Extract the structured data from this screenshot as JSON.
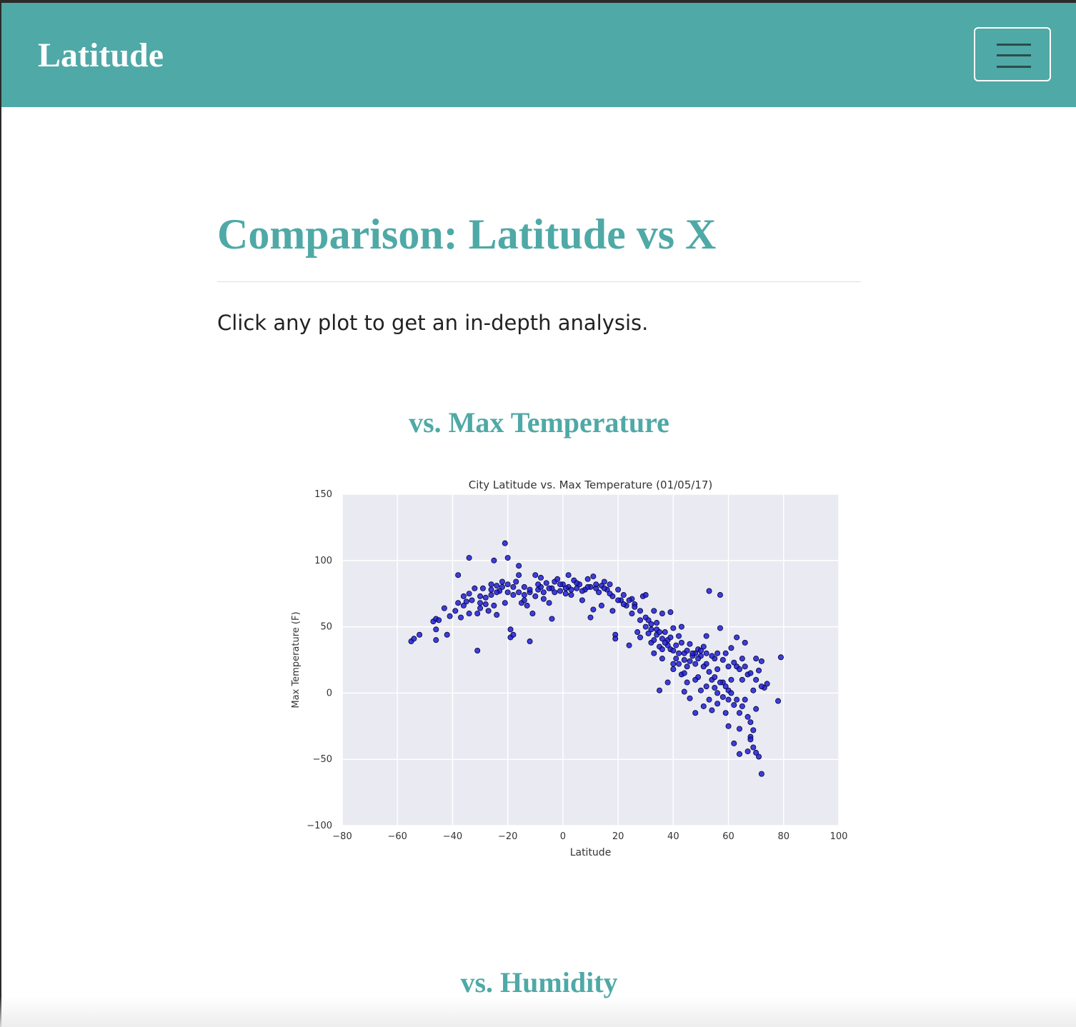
{
  "navbar": {
    "brand": "Latitude",
    "menu_toggle_icon": "hamburger-menu-icon",
    "bg_color": "#4fa9a6"
  },
  "main": {
    "title": "Comparison: Latitude vs X",
    "intro": "Click any plot to get an in-depth analysis.",
    "sections": [
      {
        "heading": "vs. Max Temperature"
      },
      {
        "heading": "vs. Humidity"
      }
    ]
  },
  "chart_data": {
    "type": "scatter",
    "title": "City Latitude vs. Max Temperature (01/05/17)",
    "xlabel": "Latitude",
    "ylabel": "Max Temperature (F)",
    "xlim": [
      -80,
      100
    ],
    "ylim": [
      -100,
      150
    ],
    "xticks": [
      -80,
      -60,
      -40,
      -20,
      0,
      20,
      40,
      60,
      80,
      100
    ],
    "xtick_labels": [
      "−80",
      "−60",
      "−40",
      "−20",
      "0",
      "20",
      "40",
      "60",
      "80",
      "100"
    ],
    "yticks": [
      -100,
      -50,
      0,
      50,
      100,
      150
    ],
    "ytick_labels": [
      "−100",
      "−50",
      "0",
      "50",
      "100",
      "150"
    ],
    "grid": true,
    "background": "#eaeaf2",
    "marker_color": "#1f1fd8",
    "points": [
      [
        -55,
        39
      ],
      [
        -54,
        41
      ],
      [
        -52,
        44
      ],
      [
        -47,
        54
      ],
      [
        -46,
        56
      ],
      [
        -46,
        48
      ],
      [
        -46,
        40
      ],
      [
        -45,
        55
      ],
      [
        -43,
        64
      ],
      [
        -42,
        44
      ],
      [
        -41,
        58
      ],
      [
        -39,
        62
      ],
      [
        -38,
        68
      ],
      [
        -38,
        89
      ],
      [
        -37,
        57
      ],
      [
        -36,
        66
      ],
      [
        -36,
        73
      ],
      [
        -35,
        69
      ],
      [
        -34,
        60
      ],
      [
        -34,
        102
      ],
      [
        -34,
        75
      ],
      [
        -33,
        70
      ],
      [
        -32,
        79
      ],
      [
        -31,
        60
      ],
      [
        -31,
        32
      ],
      [
        -30,
        64
      ],
      [
        -30,
        73
      ],
      [
        -29,
        79
      ],
      [
        -28,
        67
      ],
      [
        -27,
        62
      ],
      [
        -26,
        82
      ],
      [
        -26,
        74
      ],
      [
        -25,
        66
      ],
      [
        -25,
        100
      ],
      [
        -24,
        59
      ],
      [
        -24,
        81
      ],
      [
        -23,
        77
      ],
      [
        -22,
        84
      ],
      [
        -21,
        68
      ],
      [
        -21,
        113
      ],
      [
        -20,
        102
      ],
      [
        -20,
        76
      ],
      [
        -19,
        48
      ],
      [
        -19,
        42
      ],
      [
        -18,
        74
      ],
      [
        -18,
        44
      ],
      [
        -17,
        84
      ],
      [
        -16,
        89
      ],
      [
        -16,
        96
      ],
      [
        -15,
        68
      ],
      [
        -14,
        70
      ],
      [
        -14,
        80
      ],
      [
        -13,
        66
      ],
      [
        -12,
        39
      ],
      [
        -12,
        76
      ],
      [
        -11,
        60
      ],
      [
        -10,
        73
      ],
      [
        -10,
        89
      ],
      [
        -9,
        78
      ],
      [
        -8,
        80
      ],
      [
        -8,
        87
      ],
      [
        -7,
        71
      ],
      [
        -6,
        83
      ],
      [
        -5,
        68
      ],
      [
        -4,
        79
      ],
      [
        -4,
        56
      ],
      [
        -3,
        84
      ],
      [
        -2,
        86
      ],
      [
        -1,
        77
      ],
      [
        0,
        82
      ],
      [
        1,
        75
      ],
      [
        2,
        80
      ],
      [
        2,
        89
      ],
      [
        3,
        78
      ],
      [
        4,
        85
      ],
      [
        5,
        79
      ],
      [
        6,
        82
      ],
      [
        7,
        70
      ],
      [
        8,
        78
      ],
      [
        9,
        86
      ],
      [
        10,
        57
      ],
      [
        10,
        80
      ],
      [
        11,
        88
      ],
      [
        11,
        63
      ],
      [
        12,
        79
      ],
      [
        13,
        76
      ],
      [
        14,
        66
      ],
      [
        14,
        81
      ],
      [
        15,
        84
      ],
      [
        16,
        78
      ],
      [
        17,
        82
      ],
      [
        18,
        73
      ],
      [
        18,
        62
      ],
      [
        19,
        44
      ],
      [
        19,
        41
      ],
      [
        20,
        78
      ],
      [
        21,
        70
      ],
      [
        22,
        74
      ],
      [
        23,
        66
      ],
      [
        24,
        36
      ],
      [
        25,
        71
      ],
      [
        25,
        60
      ],
      [
        26,
        67
      ],
      [
        27,
        46
      ],
      [
        28,
        62
      ],
      [
        28,
        42
      ],
      [
        29,
        73
      ],
      [
        30,
        74
      ],
      [
        30,
        57
      ],
      [
        31,
        55
      ],
      [
        32,
        38
      ],
      [
        32,
        48
      ],
      [
        33,
        62
      ],
      [
        33,
        30
      ],
      [
        34,
        44
      ],
      [
        34,
        53
      ],
      [
        35,
        35
      ],
      [
        35,
        2
      ],
      [
        36,
        60
      ],
      [
        36,
        26
      ],
      [
        37,
        46
      ],
      [
        38,
        40
      ],
      [
        38,
        8
      ],
      [
        39,
        61
      ],
      [
        39,
        33
      ],
      [
        40,
        49
      ],
      [
        40,
        18
      ],
      [
        41,
        26
      ],
      [
        42,
        43
      ],
      [
        42,
        22
      ],
      [
        43,
        50
      ],
      [
        43,
        14
      ],
      [
        44,
        30
      ],
      [
        44,
        1
      ],
      [
        45,
        20
      ],
      [
        45,
        8
      ],
      [
        46,
        37
      ],
      [
        46,
        -4
      ],
      [
        47,
        28
      ],
      [
        48,
        22
      ],
      [
        48,
        -15
      ],
      [
        49,
        33
      ],
      [
        49,
        12
      ],
      [
        50,
        28
      ],
      [
        50,
        2
      ],
      [
        51,
        -10
      ],
      [
        51,
        35
      ],
      [
        52,
        22
      ],
      [
        52,
        43
      ],
      [
        53,
        -5
      ],
      [
        53,
        77
      ],
      [
        54,
        10
      ],
      [
        54,
        -13
      ],
      [
        55,
        26
      ],
      [
        55,
        4
      ],
      [
        56,
        -8
      ],
      [
        56,
        18
      ],
      [
        57,
        49
      ],
      [
        57,
        74
      ],
      [
        58,
        8
      ],
      [
        58,
        -3
      ],
      [
        59,
        30
      ],
      [
        59,
        -15
      ],
      [
        60,
        2
      ],
      [
        60,
        -25
      ],
      [
        61,
        34
      ],
      [
        61,
        10
      ],
      [
        62,
        -38
      ],
      [
        62,
        -9
      ],
      [
        63,
        42
      ],
      [
        63,
        20
      ],
      [
        64,
        -27
      ],
      [
        64,
        -46
      ],
      [
        65,
        10
      ],
      [
        65,
        26
      ],
      [
        66,
        -5
      ],
      [
        66,
        38
      ],
      [
        67,
        -44
      ],
      [
        67,
        14
      ],
      [
        68,
        -33
      ],
      [
        68,
        -22
      ],
      [
        69,
        2
      ],
      [
        69,
        -41
      ],
      [
        70,
        26
      ],
      [
        70,
        -12
      ],
      [
        71,
        17
      ],
      [
        71,
        -48
      ],
      [
        72,
        24
      ],
      [
        72,
        -61
      ],
      [
        73,
        4
      ],
      [
        74,
        7
      ],
      [
        78,
        -6
      ],
      [
        79,
        27
      ],
      [
        -9,
        82
      ],
      [
        -7,
        76
      ],
      [
        -5,
        79
      ],
      [
        -3,
        76
      ],
      [
        -1,
        82
      ],
      [
        1,
        79
      ],
      [
        3,
        74
      ],
      [
        5,
        83
      ],
      [
        7,
        77
      ],
      [
        9,
        80
      ],
      [
        12,
        82
      ],
      [
        15,
        79
      ],
      [
        17,
        75
      ],
      [
        20,
        70
      ],
      [
        22,
        67
      ],
      [
        24,
        70
      ],
      [
        26,
        65
      ],
      [
        28,
        55
      ],
      [
        30,
        50
      ],
      [
        32,
        52
      ],
      [
        34,
        48
      ],
      [
        36,
        41
      ],
      [
        38,
        36
      ],
      [
        40,
        32
      ],
      [
        42,
        30
      ],
      [
        44,
        25
      ],
      [
        46,
        24
      ],
      [
        48,
        30
      ],
      [
        50,
        32
      ],
      [
        52,
        30
      ],
      [
        54,
        28
      ],
      [
        56,
        30
      ],
      [
        58,
        25
      ],
      [
        60,
        20
      ],
      [
        62,
        23
      ],
      [
        64,
        18
      ],
      [
        66,
        20
      ],
      [
        68,
        15
      ],
      [
        70,
        10
      ],
      [
        72,
        5
      ],
      [
        -30,
        68
      ],
      [
        -28,
        72
      ],
      [
        -26,
        78
      ],
      [
        -24,
        76
      ],
      [
        -22,
        80
      ],
      [
        -20,
        82
      ],
      [
        -18,
        80
      ],
      [
        -16,
        76
      ],
      [
        -14,
        74
      ],
      [
        -12,
        78
      ],
      [
        31,
        45
      ],
      [
        33,
        40
      ],
      [
        35,
        46
      ],
      [
        37,
        38
      ],
      [
        39,
        42
      ],
      [
        41,
        36
      ],
      [
        43,
        38
      ],
      [
        45,
        32
      ],
      [
        47,
        30
      ],
      [
        49,
        26
      ],
      [
        51,
        20
      ],
      [
        53,
        16
      ],
      [
        55,
        12
      ],
      [
        57,
        8
      ],
      [
        59,
        5
      ],
      [
        61,
        0
      ],
      [
        63,
        -5
      ],
      [
        65,
        -10
      ],
      [
        67,
        -18
      ],
      [
        69,
        -28
      ],
      [
        36,
        33
      ],
      [
        40,
        22
      ],
      [
        44,
        15
      ],
      [
        48,
        10
      ],
      [
        52,
        5
      ],
      [
        56,
        0
      ],
      [
        60,
        -5
      ],
      [
        64,
        -15
      ],
      [
        68,
        -35
      ],
      [
        70,
        -45
      ]
    ]
  }
}
